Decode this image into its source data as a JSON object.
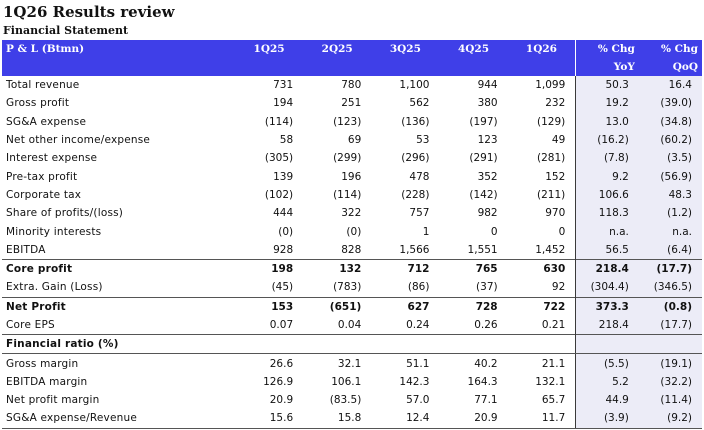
{
  "title": "1Q26 Results review",
  "subtitle": "Financial Statement",
  "header": {
    "label": "P & L (Btmn)",
    "quarters": [
      "1Q25",
      "2Q25",
      "3Q25",
      "4Q25",
      "1Q26"
    ],
    "chg_yoy_line1": "% Chg",
    "chg_yoy_line2": "YoY",
    "chg_qoq_line1": "% Chg",
    "chg_qoq_line2": "QoQ"
  },
  "pl_rows": [
    {
      "label": "Total revenue",
      "values": [
        "731",
        "780",
        "1,100",
        "944",
        "1,099"
      ],
      "yoy": "50.3",
      "qoq": "16.4",
      "bold": false
    },
    {
      "label": "Gross profit",
      "values": [
        "194",
        "251",
        "562",
        "380",
        "232"
      ],
      "yoy": "19.2",
      "qoq": "(39.0)",
      "bold": false
    },
    {
      "label": "SG&A expense",
      "values": [
        "(114)",
        "(123)",
        "(136)",
        "(197)",
        "(129)"
      ],
      "yoy": "13.0",
      "qoq": "(34.8)",
      "bold": false
    },
    {
      "label": "Net other income/expense",
      "values": [
        "58",
        "69",
        "53",
        "123",
        "49"
      ],
      "yoy": "(16.2)",
      "qoq": "(60.2)",
      "bold": false
    },
    {
      "label": "Interest expense",
      "values": [
        "(305)",
        "(299)",
        "(296)",
        "(291)",
        "(281)"
      ],
      "yoy": "(7.8)",
      "qoq": "(3.5)",
      "bold": false
    },
    {
      "label": "Pre-tax profit",
      "values": [
        "139",
        "196",
        "478",
        "352",
        "152"
      ],
      "yoy": "9.2",
      "qoq": "(56.9)",
      "bold": false
    },
    {
      "label": "Corporate tax",
      "values": [
        "(102)",
        "(114)",
        "(228)",
        "(142)",
        "(211)"
      ],
      "yoy": "106.6",
      "qoq": "48.3",
      "bold": false
    },
    {
      "label": "Share of profits/(loss)",
      "values": [
        "444",
        "322",
        "757",
        "982",
        "970"
      ],
      "yoy": "118.3",
      "qoq": "(1.2)",
      "bold": false
    },
    {
      "label": "Minority interests",
      "values": [
        "(0)",
        "(0)",
        "1",
        "0",
        "0"
      ],
      "yoy": "n.a.",
      "qoq": "n.a.",
      "bold": false
    },
    {
      "label": "EBITDA",
      "values": [
        "928",
        "828",
        "1,566",
        "1,551",
        "1,452"
      ],
      "yoy": "56.5",
      "qoq": "(6.4)",
      "bold": false
    },
    {
      "label": "Core profit",
      "values": [
        "198",
        "132",
        "712",
        "765",
        "630"
      ],
      "yoy": "218.4",
      "qoq": "(17.7)",
      "bold": true
    },
    {
      "label": "Extra. Gain (Loss)",
      "values": [
        "(45)",
        "(783)",
        "(86)",
        "(37)",
        "92"
      ],
      "yoy": "(304.4)",
      "qoq": "(346.5)",
      "bold": false
    },
    {
      "label": "Net Profit",
      "values": [
        "153",
        "(651)",
        "627",
        "728",
        "722"
      ],
      "yoy": "373.3",
      "qoq": "(0.8)",
      "bold": true
    },
    {
      "label": "Core EPS",
      "values": [
        "0.07",
        "0.04",
        "0.24",
        "0.26",
        "0.21"
      ],
      "yoy": "218.4",
      "qoq": "(17.7)",
      "bold": false
    }
  ],
  "ratio_section": "Financial ratio (%)",
  "ratio_rows": [
    {
      "label": "Gross margin",
      "values": [
        "26.6",
        "32.1",
        "51.1",
        "40.2",
        "21.1"
      ],
      "yoy": "(5.5)",
      "qoq": "(19.1)"
    },
    {
      "label": "EBITDA margin",
      "values": [
        "126.9",
        "106.1",
        "142.3",
        "164.3",
        "132.1"
      ],
      "yoy": "5.2",
      "qoq": "(32.2)"
    },
    {
      "label": "Net profit margin",
      "values": [
        "20.9",
        "(83.5)",
        "57.0",
        "77.1",
        "65.7"
      ],
      "yoy": "44.9",
      "qoq": "(11.4)"
    },
    {
      "label": "SG&A expense/Revenue",
      "values": [
        "15.6",
        "15.8",
        "12.4",
        "20.9",
        "11.7"
      ],
      "yoy": "(3.9)",
      "qoq": "(9.2)"
    }
  ],
  "colors": {
    "header_bg": "#3f3fe8",
    "header_text": "#ffffff",
    "pct_bg": "#ececf7"
  }
}
